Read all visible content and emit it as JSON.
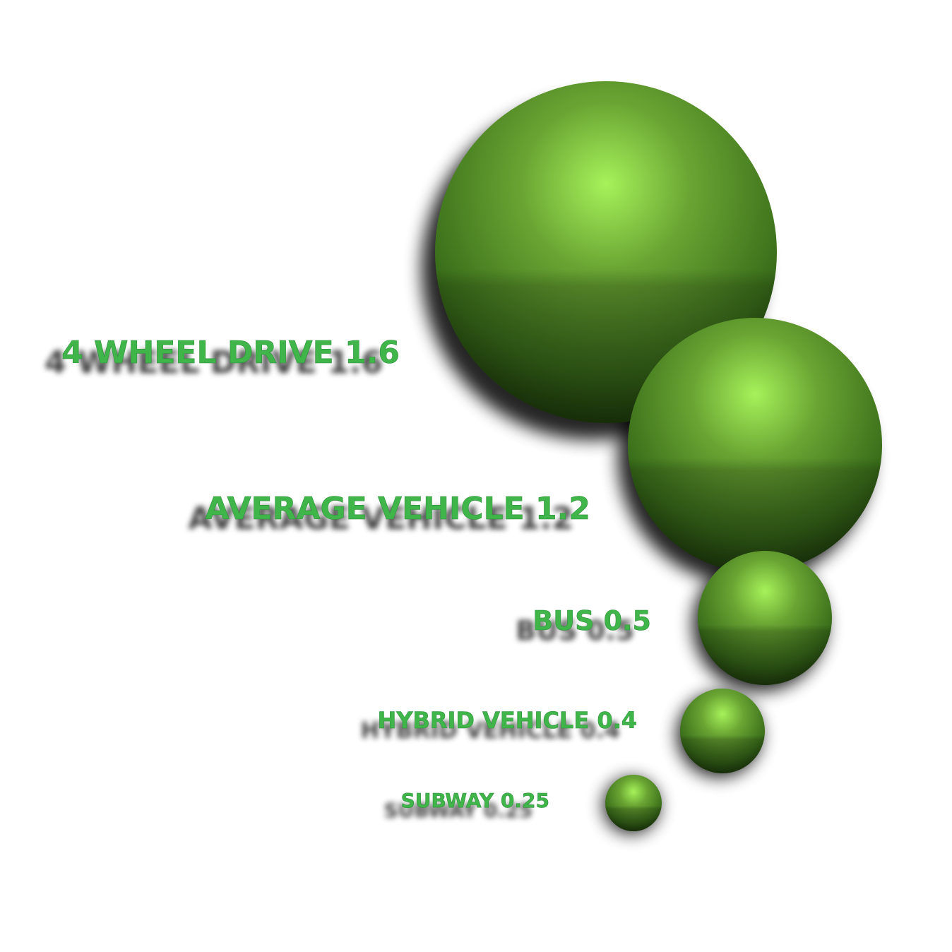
{
  "chart_data": {
    "type": "bubble",
    "categories": [
      "4 Wheel Drive",
      "Average Vehicle",
      "Bus",
      "Hybrid Vehicle",
      "Subway"
    ],
    "values": [
      1.6,
      1.2,
      0.5,
      0.4,
      0.25
    ],
    "labels": [
      "4 Wheel Drive 1.6",
      "Average Vehicle 1.2",
      "Bus 0.5",
      "Hybrid Vehicle 0.4",
      "Subway 0.25"
    ],
    "colors": {
      "bubble_light": "#a6f25a",
      "bubble_mid": "#6aa533",
      "bubble_dark": "#1f3f0c",
      "label_fill": "#3fb54a"
    }
  }
}
